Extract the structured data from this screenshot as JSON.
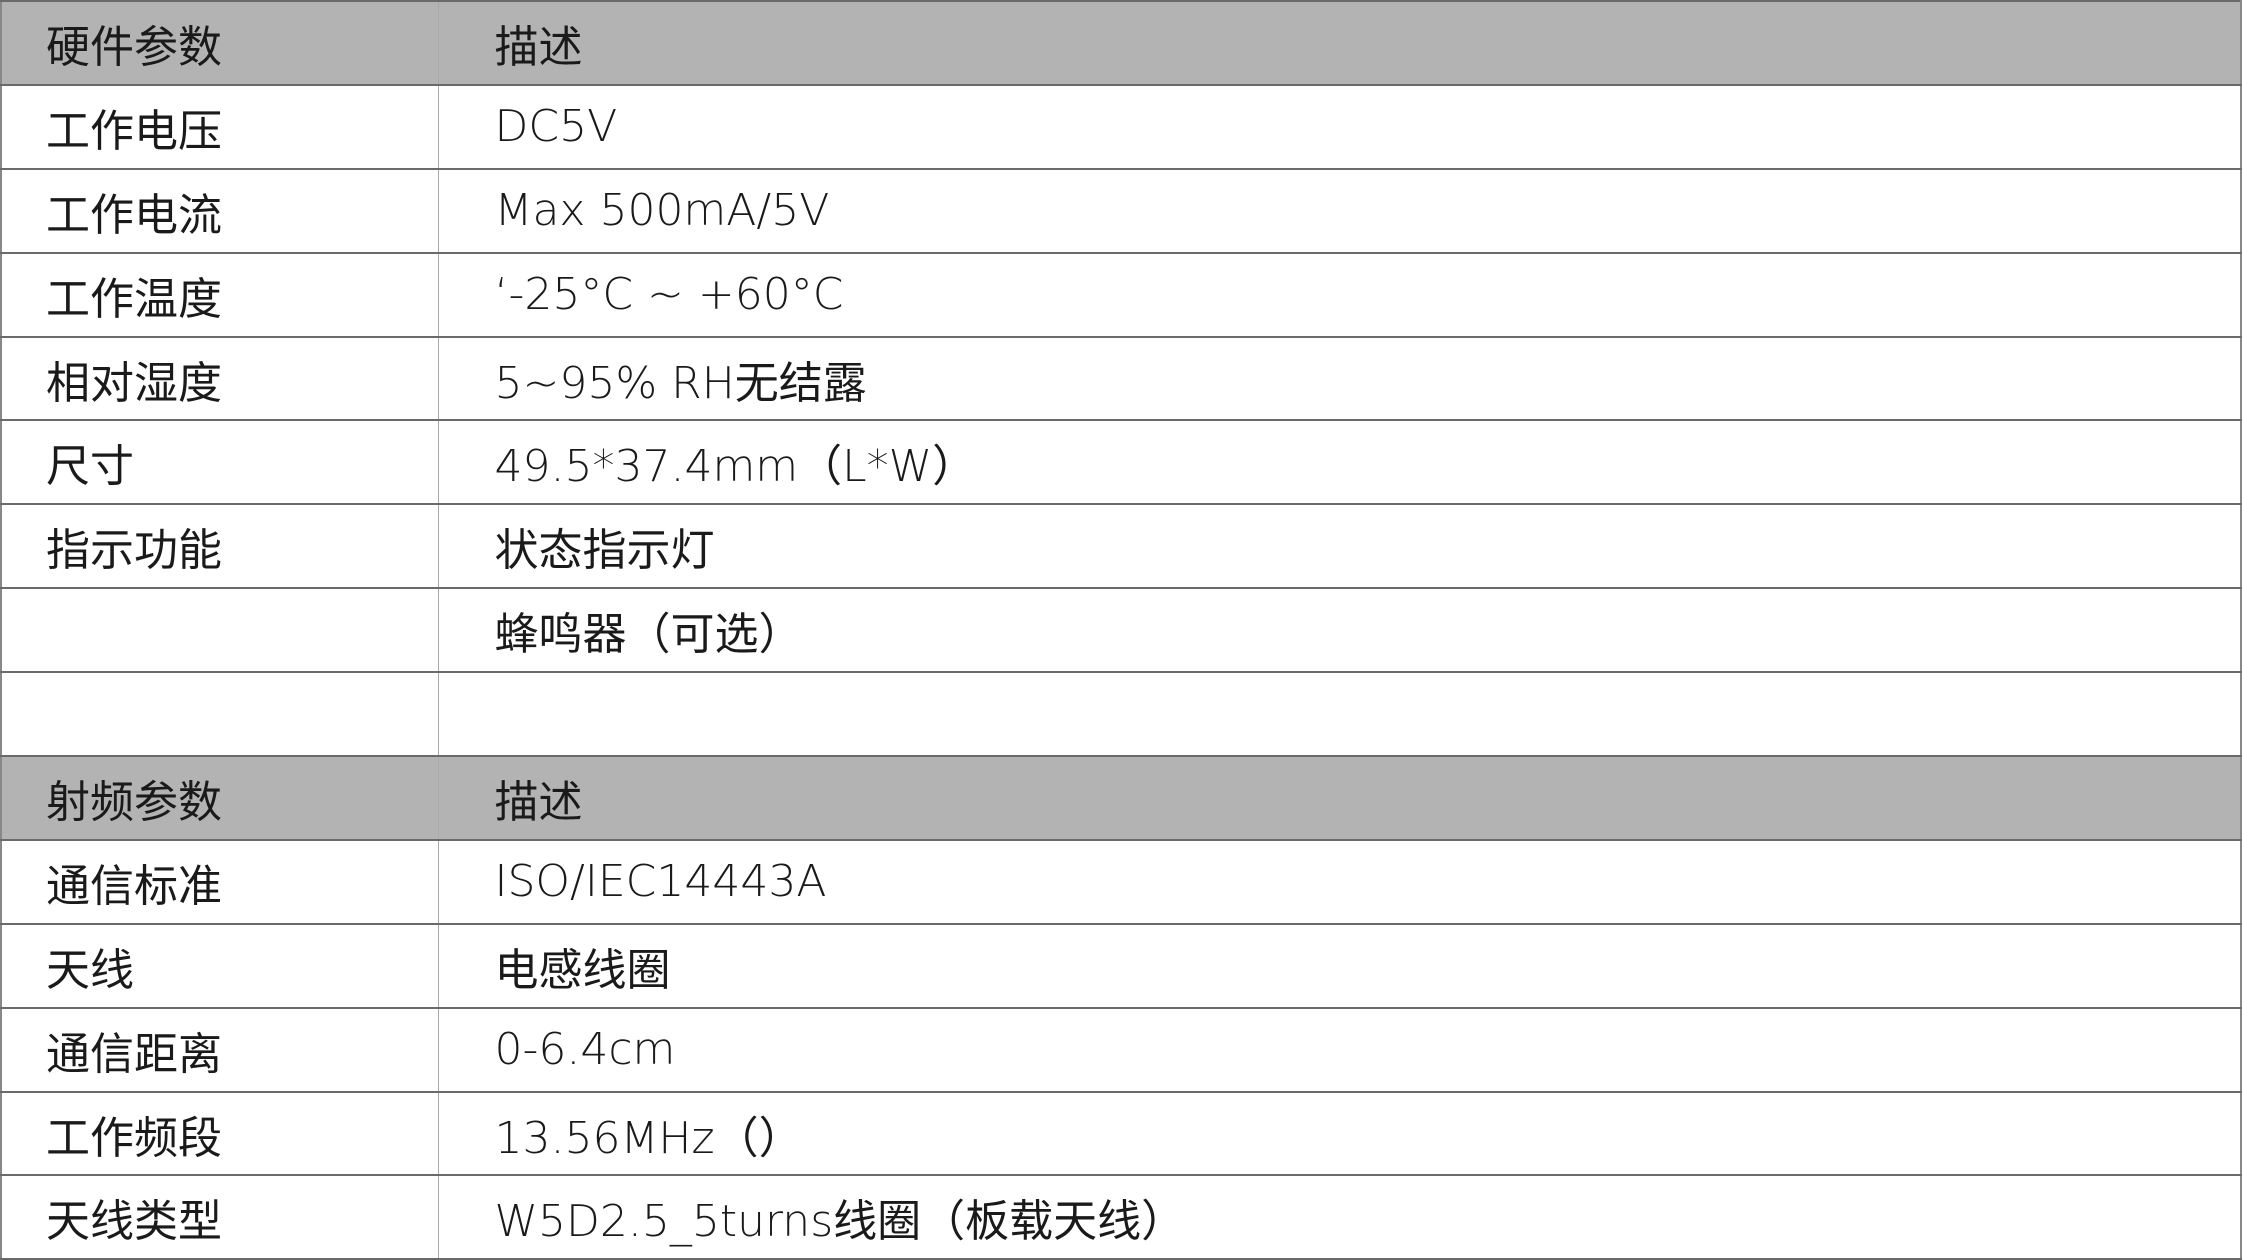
{
  "table": {
    "rows": [
      {
        "type": "header",
        "param": "硬件参数",
        "desc": "描述"
      },
      {
        "param": "工作电压",
        "desc": "DC5V"
      },
      {
        "param": "工作电流",
        "desc": "Max 500mA/5V"
      },
      {
        "param": "工作温度",
        "desc": "‘-25°C ~ +60°C"
      },
      {
        "param": "相对湿度",
        "desc": "5~95% RH无结露"
      },
      {
        "param": "尺寸",
        "desc": "49.5*37.4mm（L*W）"
      },
      {
        "param": "指示功能",
        "desc": "状态指示灯"
      },
      {
        "param": "",
        "desc": "蜂鸣器（可选）"
      },
      {
        "param": "",
        "desc": ""
      },
      {
        "type": "header",
        "param": "射频参数",
        "desc": "描述"
      },
      {
        "param": "通信标准",
        "desc": "ISO/IEC14443A"
      },
      {
        "param": "天线",
        "desc": "电感线圈"
      },
      {
        "param": "通信距离",
        "desc": "0-6.4cm"
      },
      {
        "param": "工作频段",
        "desc": "13.56MHz（）"
      },
      {
        "param": "天线类型",
        "desc": "W5D2.5_5turns线圈（板载天线）"
      }
    ]
  },
  "colors": {
    "header_bg": "#b3b3b3",
    "border": "#6a6a6a"
  }
}
